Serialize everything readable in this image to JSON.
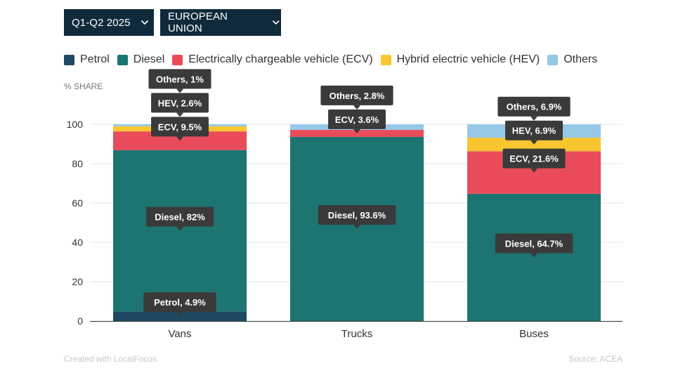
{
  "filters": {
    "period": "Q1-Q2 2025",
    "region": "EUROPEAN UNION"
  },
  "footer": {
    "credit": "Created with LocalFocus",
    "source": "Source:  ACEA"
  },
  "chart_data": {
    "type": "bar",
    "stacked": true,
    "ylabel": "% SHARE",
    "ylim": [
      0,
      100
    ],
    "yticks": [
      0,
      20,
      40,
      60,
      80,
      100
    ],
    "grid": true,
    "legend_position": "top-left",
    "categories": [
      "Vans",
      "Trucks",
      "Buses"
    ],
    "series": [
      {
        "name": "Petrol",
        "color": "#1f4963",
        "values": [
          4.9,
          0,
          0
        ]
      },
      {
        "name": "Diesel",
        "color": "#1c7571",
        "values": [
          82,
          93.6,
          64.7
        ]
      },
      {
        "name": "Electrically chargeable vehicle (ECV)",
        "color": "#ea4b5a",
        "values": [
          9.5,
          3.6,
          21.6
        ]
      },
      {
        "name": "Hybrid electric vehicle (HEV)",
        "color": "#f8c630",
        "values": [
          2.6,
          0,
          6.9
        ]
      },
      {
        "name": "Others",
        "color": "#96c8e8",
        "values": [
          1,
          2.8,
          6.9
        ]
      }
    ],
    "data_labels": [
      {
        "category": 0,
        "series": 0,
        "text": "Petrol, 4.9%"
      },
      {
        "category": 0,
        "series": 1,
        "text": "Diesel, 82%"
      },
      {
        "category": 0,
        "series": 2,
        "text": "ECV, 9.5%"
      },
      {
        "category": 0,
        "series": 3,
        "text": "HEV, 2.6%"
      },
      {
        "category": 0,
        "series": 4,
        "text": "Others, 1%"
      },
      {
        "category": 1,
        "series": 1,
        "text": "Diesel, 93.6%"
      },
      {
        "category": 1,
        "series": 2,
        "text": "ECV, 3.6%"
      },
      {
        "category": 1,
        "series": 4,
        "text": "Others, 2.8%"
      },
      {
        "category": 2,
        "series": 1,
        "text": "Diesel, 64.7%"
      },
      {
        "category": 2,
        "series": 2,
        "text": "ECV, 21.6%"
      },
      {
        "category": 2,
        "series": 3,
        "text": "HEV, 6.9%"
      },
      {
        "category": 2,
        "series": 4,
        "text": "Others, 6.9%"
      }
    ]
  }
}
